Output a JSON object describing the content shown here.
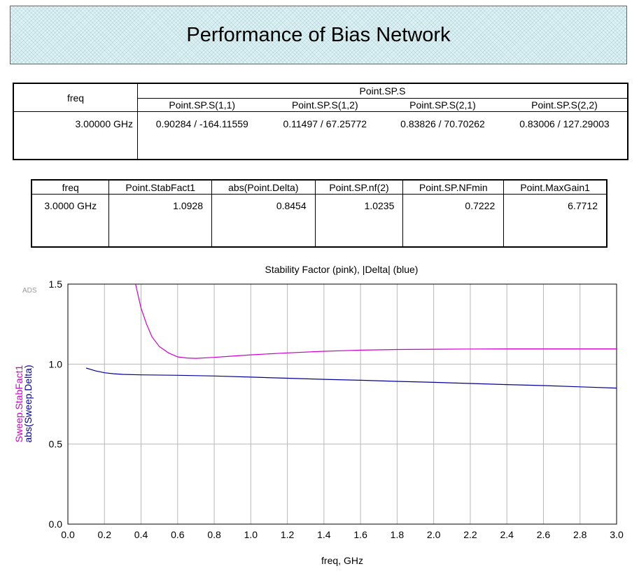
{
  "page_title": "Performance of Bias Network",
  "sp_table": {
    "freq_header": "freq",
    "group_header": "Point.SP.S",
    "columns": [
      "Point.SP.S(1,1)",
      "Point.SP.S(1,2)",
      "Point.SP.S(2,1)",
      "Point.SP.S(2,2)"
    ],
    "freq_value": "3.00000 GHz",
    "values": [
      "0.90284 / -164.11559",
      "0.11497 / 67.25772",
      "0.83826 / 70.70262",
      "0.83006 / 127.29003"
    ]
  },
  "noise_table": {
    "headers": [
      "freq",
      "Point.StabFact1",
      "abs(Point.Delta)",
      "Point.SP.nf(2)",
      "Point.SP.NFmin",
      "Point.MaxGain1"
    ],
    "values": [
      "3.0000 GHz",
      "1.0928",
      "0.8454",
      "1.0235",
      "0.7222",
      "6.7712"
    ]
  },
  "chart_data": {
    "type": "line",
    "title": "Stability Factor (pink), |Delta| (blue)",
    "xlabel": "freq, GHz",
    "ylabels": [
      "Sweep.StabFact1",
      "abs(Sweep.Delta)"
    ],
    "corner_label": "ADS",
    "xlim": [
      0.0,
      3.0
    ],
    "ylim": [
      0.0,
      1.5
    ],
    "xticks": [
      "0.0",
      "0.2",
      "0.4",
      "0.6",
      "0.8",
      "1.0",
      "1.2",
      "1.4",
      "1.6",
      "1.8",
      "2.0",
      "2.2",
      "2.4",
      "2.6",
      "2.8",
      "3.0"
    ],
    "yticks": [
      "0.0",
      "0.5",
      "1.0",
      "1.5"
    ],
    "grid": true,
    "series": [
      {
        "color": "#cc00cc",
        "x": [
          0.37,
          0.4,
          0.43,
          0.46,
          0.5,
          0.55,
          0.6,
          0.65,
          0.7,
          0.8,
          0.9,
          1.0,
          1.2,
          1.4,
          1.6,
          1.8,
          2.0,
          2.2,
          2.4,
          2.6,
          2.8,
          3.0
        ],
        "y": [
          1.5,
          1.35,
          1.25,
          1.17,
          1.11,
          1.07,
          1.045,
          1.038,
          1.036,
          1.042,
          1.05,
          1.058,
          1.07,
          1.08,
          1.087,
          1.091,
          1.093,
          1.094,
          1.095,
          1.095,
          1.095,
          1.095
        ]
      },
      {
        "color": "#000099",
        "x": [
          0.1,
          0.15,
          0.2,
          0.25,
          0.3,
          0.4,
          0.6,
          0.8,
          1.0,
          1.2,
          1.4,
          1.6,
          1.8,
          2.0,
          2.2,
          2.4,
          2.6,
          2.8,
          3.0
        ],
        "y": [
          0.975,
          0.958,
          0.946,
          0.94,
          0.936,
          0.933,
          0.93,
          0.926,
          0.919,
          0.912,
          0.905,
          0.899,
          0.892,
          0.886,
          0.879,
          0.872,
          0.866,
          0.858,
          0.85
        ]
      }
    ]
  }
}
